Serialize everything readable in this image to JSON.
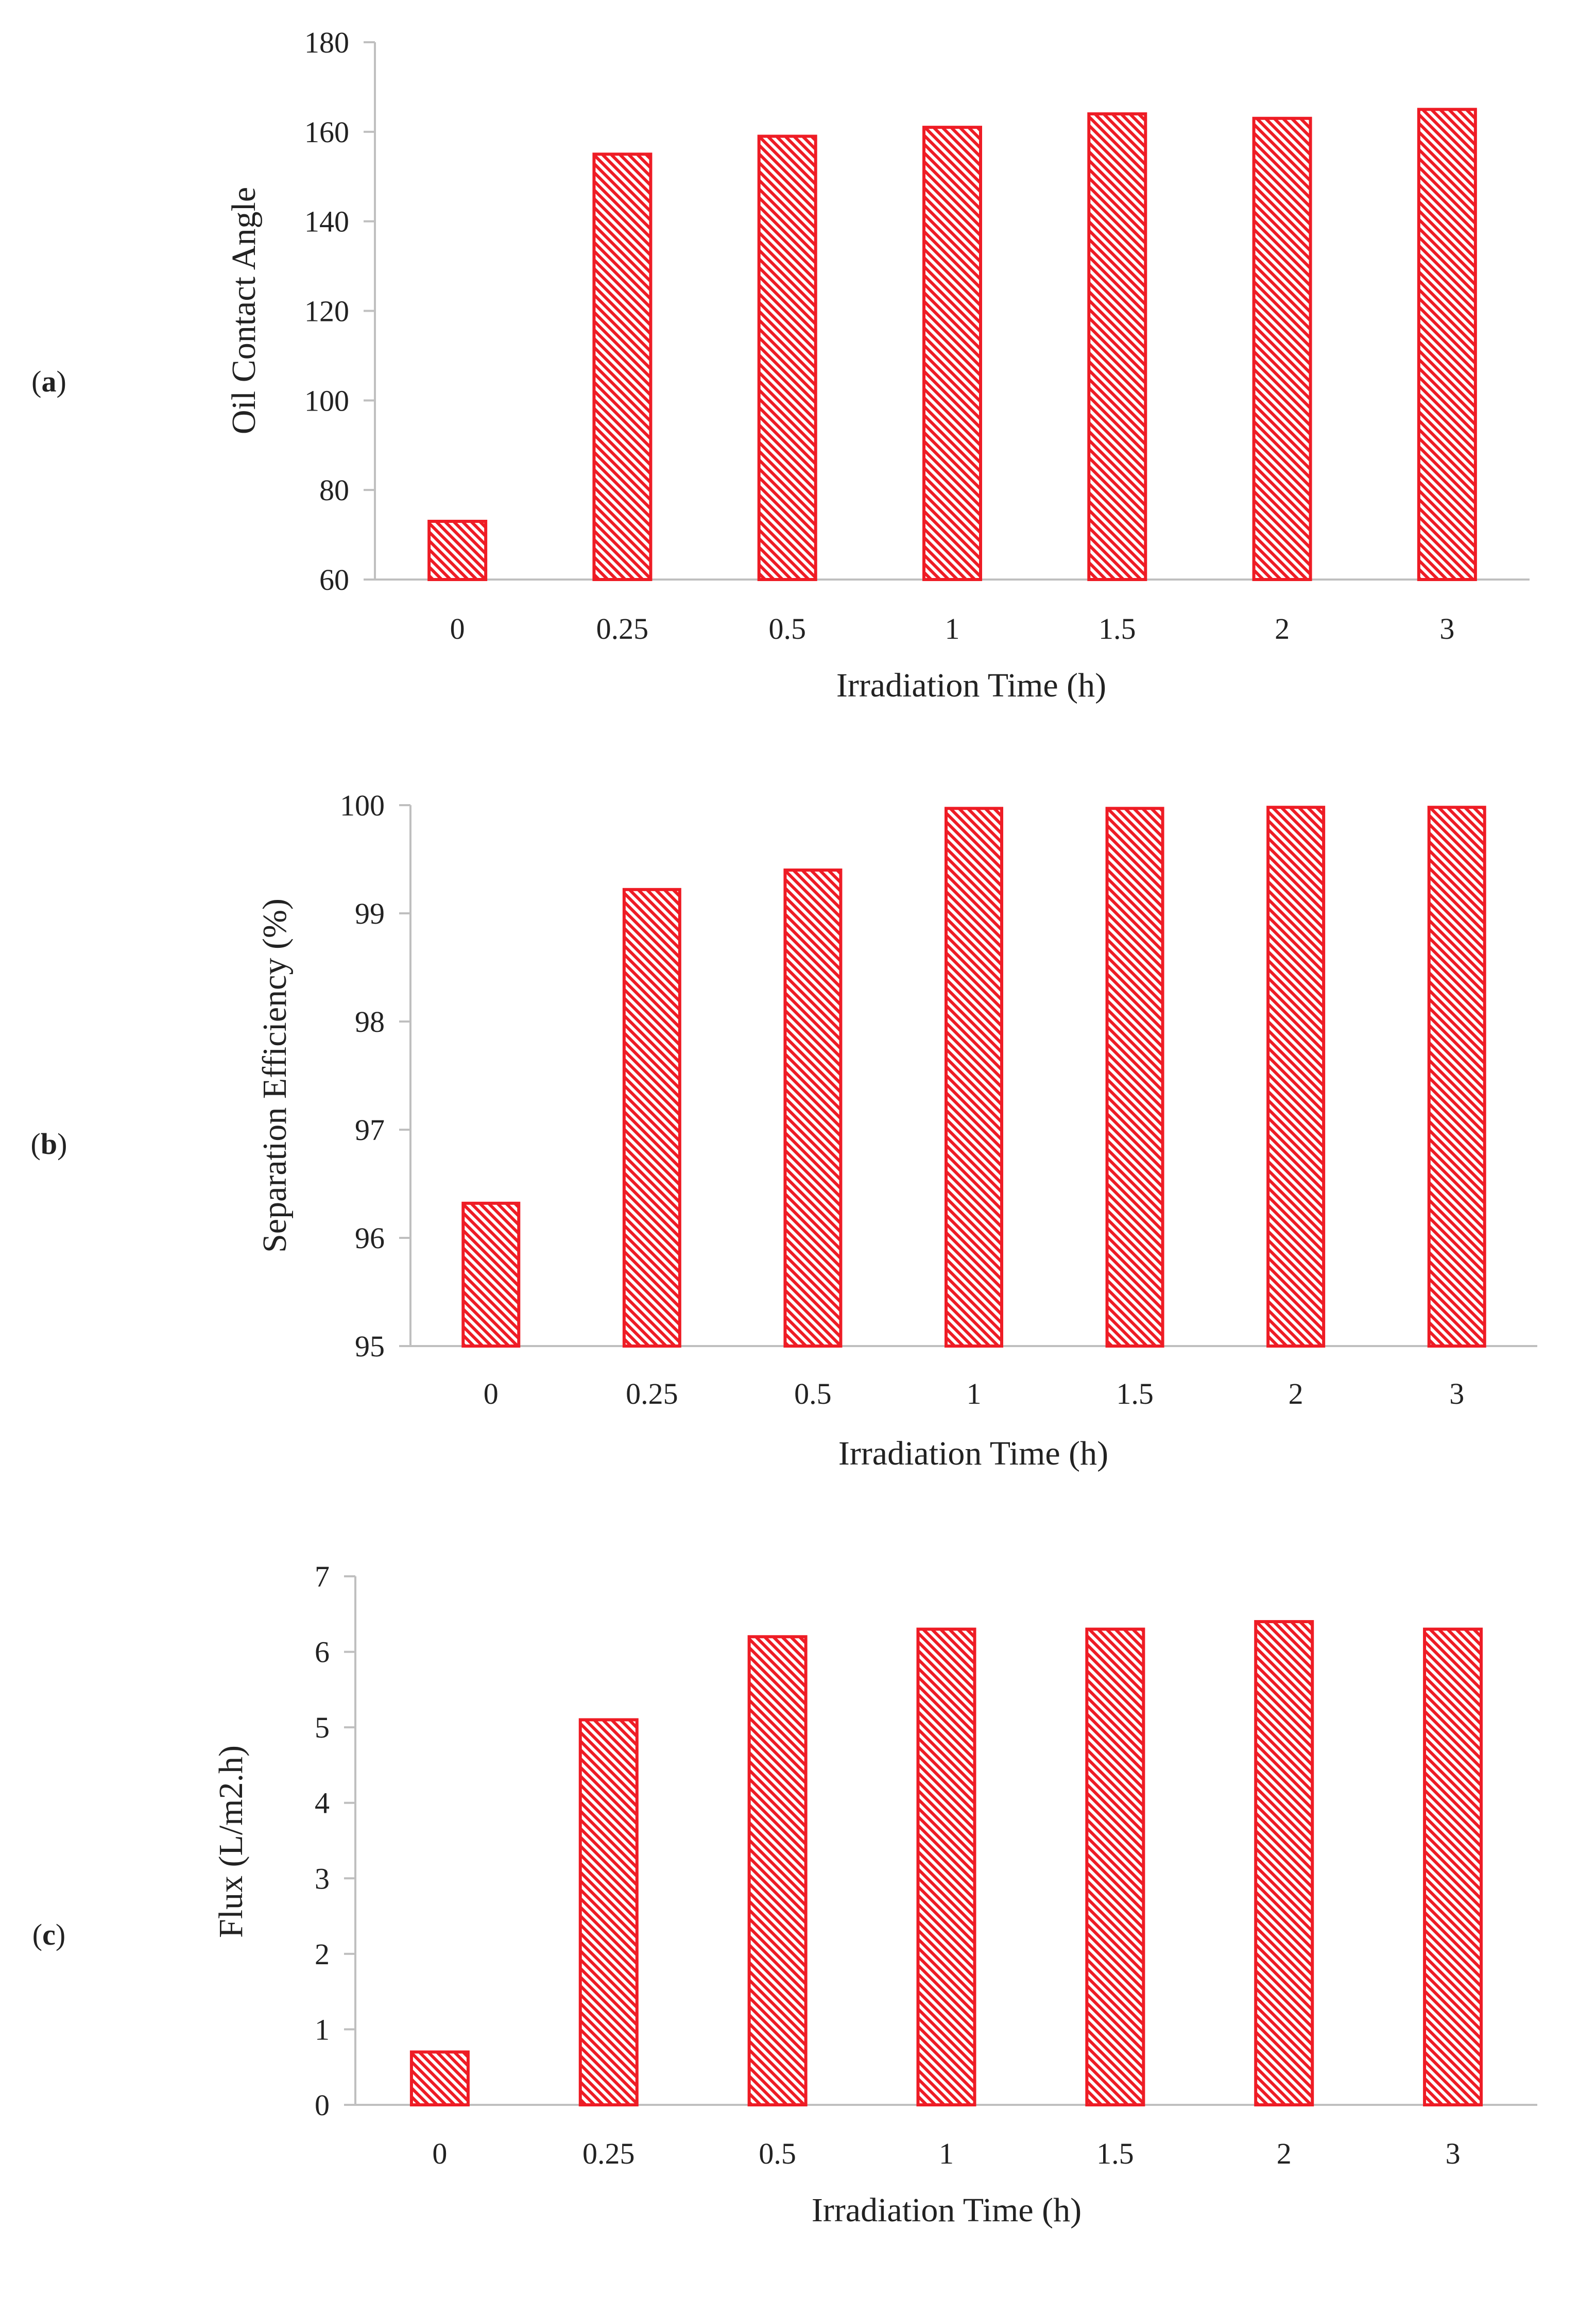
{
  "style": {
    "bar_stroke": "#ee1c25",
    "bar_hatch": "#ee1c25",
    "bar_background": "#ffffff",
    "axis_color": "#bfbfbf",
    "text_color": "#222222"
  },
  "chart_data": [
    {
      "type": "bar",
      "panel_label": "a",
      "title": "",
      "categories": [
        "0",
        "0.25",
        "0.5",
        "1",
        "1.5",
        "2",
        "3"
      ],
      "values": [
        73,
        155,
        159,
        161,
        164,
        163,
        165
      ],
      "xlabel": "Irradiation Time (h)",
      "ylabel": "Oil Contact Angle",
      "ylim": [
        60,
        180
      ],
      "yticks": [
        60,
        80,
        100,
        120,
        140,
        160,
        180
      ],
      "yticklabels": [
        "60",
        "80",
        "100",
        "120",
        "140",
        "160",
        "180"
      ],
      "grid": false,
      "legend": "none"
    },
    {
      "type": "bar",
      "panel_label": "b",
      "title": "",
      "categories": [
        "0",
        "0.25",
        "0.5",
        "1",
        "1.5",
        "2",
        "3"
      ],
      "values": [
        96.32,
        99.22,
        99.4,
        99.97,
        99.97,
        99.98,
        99.98
      ],
      "xlabel": "Irradiation Time (h)",
      "ylabel": "Separation Efficiency (%)",
      "ylim": [
        95,
        100
      ],
      "yticks": [
        95,
        96,
        97,
        98,
        99,
        100
      ],
      "yticklabels": [
        "95",
        "96",
        "97",
        "98",
        "99",
        "100"
      ],
      "grid": false,
      "legend": "none"
    },
    {
      "type": "bar",
      "panel_label": "c",
      "title": "",
      "categories": [
        "0",
        "0.25",
        "0.5",
        "1",
        "1.5",
        "2",
        "3"
      ],
      "values": [
        0.7,
        5.1,
        6.2,
        6.3,
        6.3,
        6.4,
        6.3
      ],
      "xlabel": "Irradiation Time (h)",
      "ylabel": "Flux (L/m2.h)",
      "ylim": [
        0,
        7
      ],
      "yticks": [
        0,
        1,
        2,
        3,
        4,
        5,
        6,
        7
      ],
      "yticklabels": [
        "0",
        "1",
        "2",
        "3",
        "4",
        "5",
        "6",
        "7"
      ],
      "grid": false,
      "legend": "none"
    }
  ]
}
